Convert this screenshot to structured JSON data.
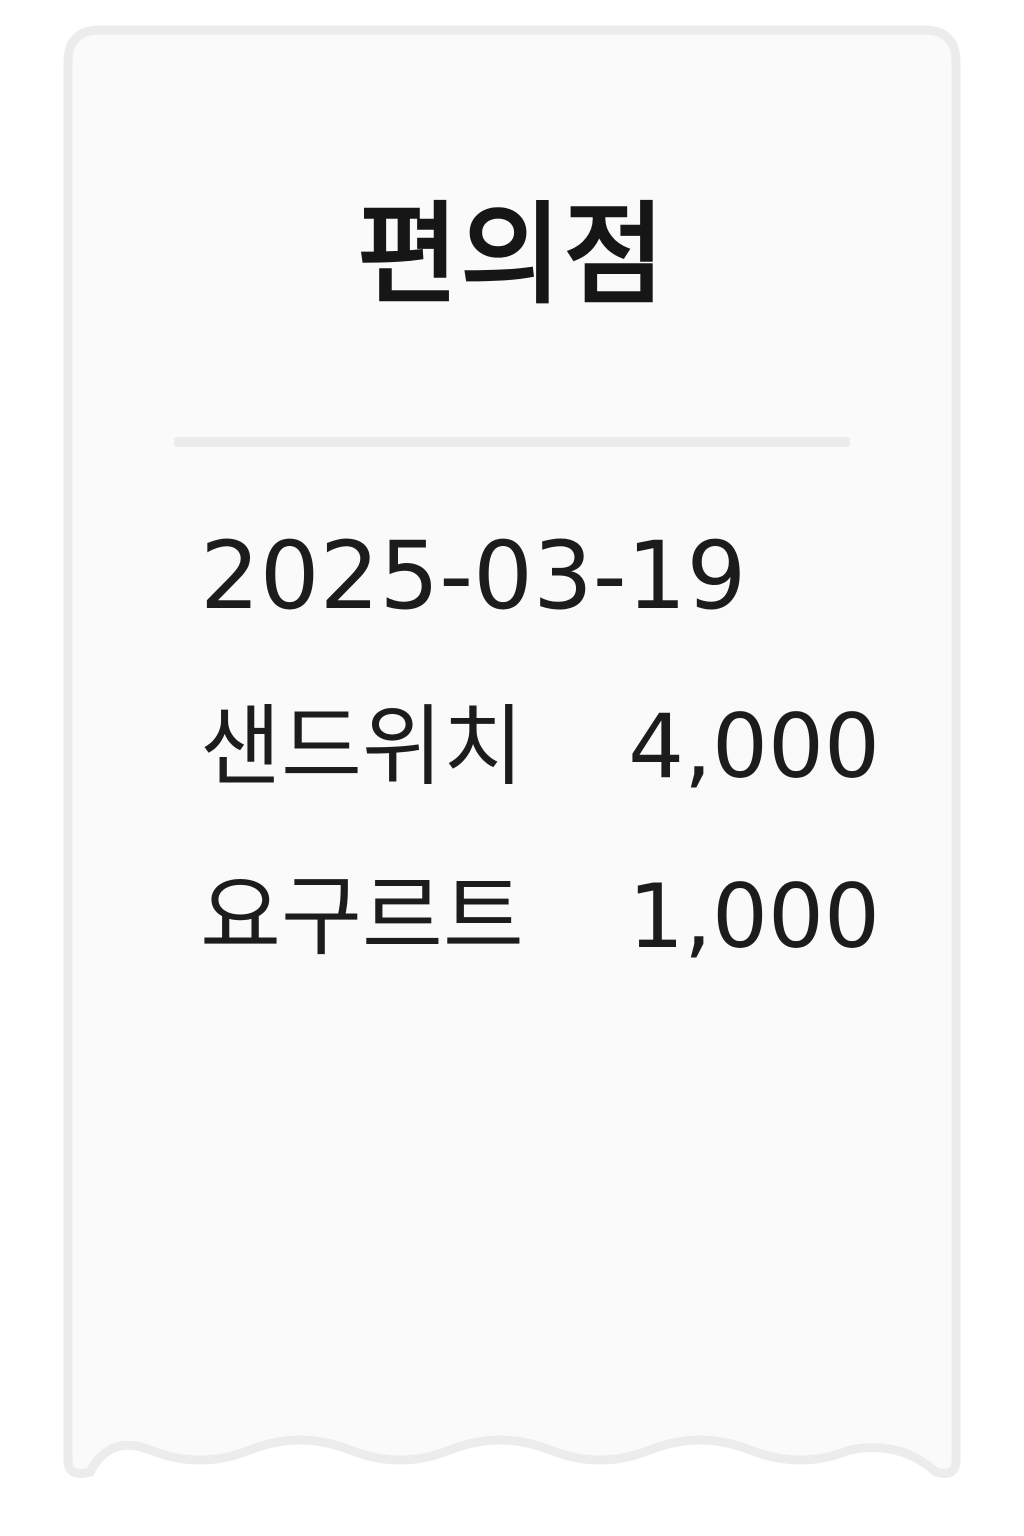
{
  "receipt": {
    "store_name": "편의점",
    "date": "2025-03-19",
    "items": [
      {
        "name": "샌드위치",
        "price": "4,000"
      },
      {
        "name": "요구르트",
        "price": "1,000"
      }
    ]
  },
  "colors": {
    "paper": "#fafafa",
    "border": "#ececec",
    "divider": "#ebebeb",
    "text": "#1c1c1c"
  }
}
